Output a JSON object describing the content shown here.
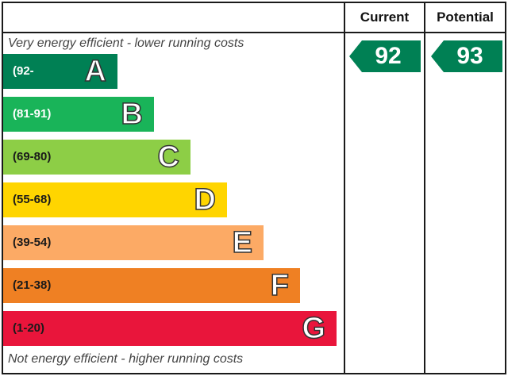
{
  "header": {
    "current": "Current",
    "potential": "Potential"
  },
  "captions": {
    "top": "Very energy efficient - lower running costs",
    "bottom": "Not energy efficient - higher running costs"
  },
  "chart_data": {
    "type": "bar",
    "bands": [
      {
        "letter": "A",
        "range": "(92-",
        "color": "#008054",
        "text_color": "#ffffff"
      },
      {
        "letter": "B",
        "range": "(81-91)",
        "color": "#19b459",
        "text_color": "#ffffff"
      },
      {
        "letter": "C",
        "range": "(69-80)",
        "color": "#8dce46",
        "text_color": "#1a1a1a"
      },
      {
        "letter": "D",
        "range": "(55-68)",
        "color": "#ffd500",
        "text_color": "#1a1a1a"
      },
      {
        "letter": "E",
        "range": "(39-54)",
        "color": "#fcaa65",
        "text_color": "#1a1a1a"
      },
      {
        "letter": "F",
        "range": "(21-38)",
        "color": "#ef8023",
        "text_color": "#1a1a1a"
      },
      {
        "letter": "G",
        "range": "(1-20)",
        "color": "#e9153b",
        "text_color": "#1a1a1a"
      }
    ],
    "current": {
      "value": "92",
      "band": "A",
      "color": "#008054"
    },
    "potential": {
      "value": "93",
      "band": "A",
      "color": "#008054"
    }
  }
}
